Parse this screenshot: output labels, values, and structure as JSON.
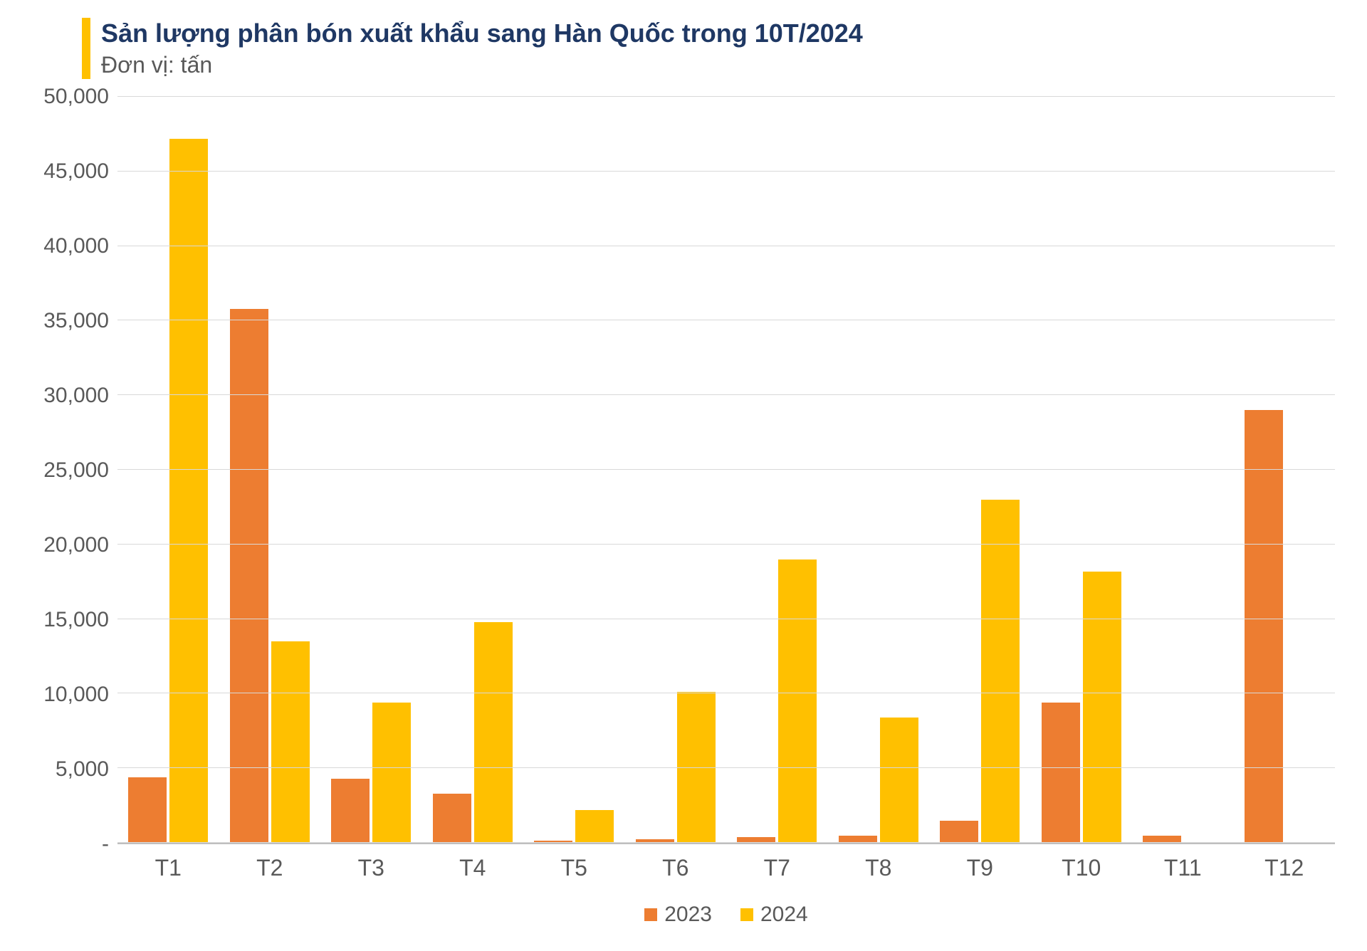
{
  "chart": {
    "type": "bar",
    "title": "Sản lượng phân bón xuất khẩu sang Hàn Quốc trong 10T/2024",
    "subtitle": "Đơn vị: tấn",
    "title_color": "#1f3864",
    "subtitle_color": "#595959",
    "title_bar_color": "#ffc000",
    "title_fontsize": 36,
    "subtitle_fontsize": 32,
    "categories": [
      "T1",
      "T2",
      "T3",
      "T4",
      "T5",
      "T6",
      "T7",
      "T8",
      "T9",
      "T10",
      "T11",
      "T12"
    ],
    "series": [
      {
        "name": "2023",
        "color": "#ed7d31",
        "values": [
          4400,
          35800,
          4300,
          3300,
          150,
          250,
          400,
          500,
          1500,
          9400,
          500,
          29000
        ]
      },
      {
        "name": "2024",
        "color": "#ffc000",
        "values": [
          47200,
          13500,
          9400,
          14800,
          2200,
          10100,
          19000,
          8400,
          23000,
          18200,
          null,
          null
        ]
      }
    ],
    "ylim": [
      0,
      50000
    ],
    "ytick_step": 5000,
    "ytick_labels": [
      "-",
      "5,000",
      "10,000",
      "15,000",
      "20,000",
      "25,000",
      "30,000",
      "35,000",
      "40,000",
      "45,000",
      "50,000"
    ],
    "ytick_values": [
      0,
      5000,
      10000,
      15000,
      20000,
      25000,
      30000,
      35000,
      40000,
      45000,
      50000
    ],
    "axis_label_color": "#595959",
    "axis_label_fontsize": 30,
    "grid_color": "#d9d9d9",
    "axis_line_color": "#bfbfbf",
    "background_color": "#ffffff",
    "bar_width_pct": 38,
    "legend_position": "bottom",
    "x_label_fontsize": 32
  }
}
